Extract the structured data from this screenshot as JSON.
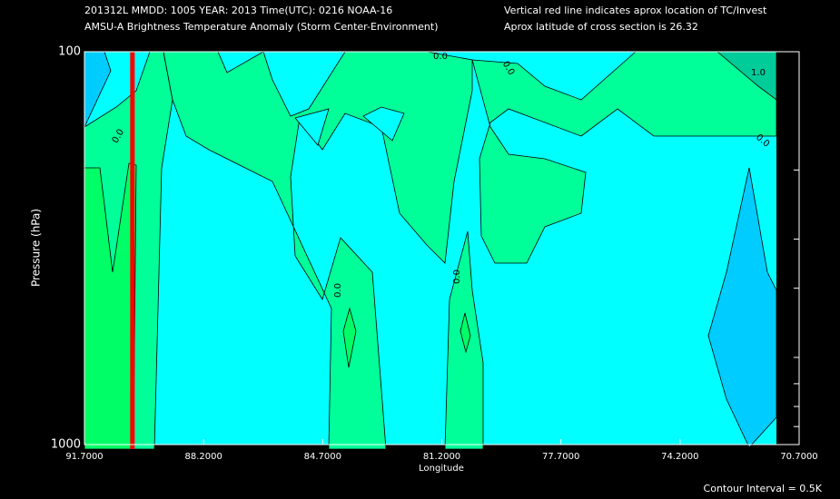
{
  "chart_data": {
    "type": "contour",
    "title": "201312L  MMDD: 1005 YEAR: 2013 Time(UTC): 0216 NOAA-16",
    "subtitle": "AMSU-A Brightness Temperature Anomaly (Storm Center-Environment)",
    "notes": [
      "Vertical red line indicates aprox location of TC/Invest",
      "Aprox latitude of cross section is 26.32"
    ],
    "footnote": "Contour Interval = 0.5K",
    "xlabel": "Longitude",
    "ylabel": "Pressure (hPa)",
    "xlim": [
      91.7,
      70.7
    ],
    "xticks": [
      {
        "value": 91.7,
        "label": "91.7000"
      },
      {
        "value": 88.2,
        "label": "88.2000"
      },
      {
        "value": 84.7,
        "label": "84.7000"
      },
      {
        "value": 81.2,
        "label": "81.2000"
      },
      {
        "value": 77.7,
        "label": "77.7000"
      },
      {
        "value": 74.2,
        "label": "74.2000"
      },
      {
        "value": 70.7,
        "label": "70.7000"
      }
    ],
    "ylim": [
      100,
      1000
    ],
    "yscale": "log",
    "yticks": [
      100,
      1000
    ],
    "yminorticks": [
      200,
      300,
      400,
      600,
      700,
      800,
      900
    ],
    "storm_longitude": 90.29,
    "storm_line_color": "#ff0000",
    "contour_labels": [
      {
        "value": 0,
        "label": "0.0"
      },
      {
        "value": 0,
        "label": "0.0"
      },
      {
        "value": 0,
        "label": "0.0"
      },
      {
        "value": 0,
        "label": "0.0"
      },
      {
        "value": 0,
        "label": "0.0"
      },
      {
        "value": 0,
        "label": "0.0"
      },
      {
        "value": 1,
        "label": "1.0"
      }
    ]
  }
}
